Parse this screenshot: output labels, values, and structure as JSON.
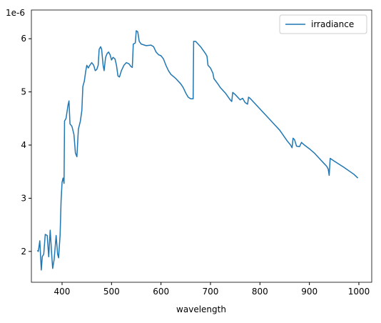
{
  "chart_data": {
    "type": "line",
    "xlabel": "wavelength",
    "y_offset_text": "1e-6",
    "x": [
      350,
      352,
      355,
      358,
      360,
      363,
      366,
      370,
      373,
      376,
      379,
      381,
      384,
      388,
      391,
      393,
      396,
      398,
      400,
      402,
      404,
      405,
      408,
      412,
      414,
      416,
      420,
      424,
      427,
      430,
      433,
      437,
      440,
      442,
      445,
      448,
      450,
      453,
      456,
      460,
      464,
      467,
      470,
      473,
      475,
      478,
      480,
      483,
      485,
      488,
      491,
      494,
      497,
      500,
      503,
      507,
      510,
      513,
      516,
      520,
      525,
      530,
      535,
      539,
      542,
      544,
      548,
      550,
      553,
      556,
      560,
      570,
      580,
      585,
      590,
      595,
      600,
      605,
      610,
      615,
      620,
      630,
      640,
      645,
      650,
      655,
      660,
      665,
      666,
      670,
      680,
      690,
      693,
      695,
      700,
      705,
      707,
      715,
      720,
      730,
      740,
      743,
      745,
      750,
      760,
      765,
      770,
      775,
      777,
      780,
      800,
      820,
      840,
      855,
      862,
      865,
      867,
      870,
      874,
      880,
      884,
      890,
      900,
      910,
      920,
      930,
      935,
      938,
      940,
      942,
      950,
      970,
      990,
      998
    ],
    "series": [
      {
        "name": "irradiance",
        "color": "#1f77b4",
        "values": [
          2.02,
          2.0,
          2.2,
          1.65,
          1.9,
          1.95,
          2.32,
          2.3,
          1.9,
          2.4,
          1.95,
          1.68,
          1.85,
          2.3,
          1.95,
          1.88,
          2.3,
          2.95,
          3.3,
          3.38,
          3.28,
          4.45,
          4.5,
          4.75,
          4.83,
          4.4,
          4.35,
          4.2,
          3.85,
          3.78,
          4.3,
          4.45,
          4.65,
          5.1,
          5.2,
          5.4,
          5.5,
          5.45,
          5.5,
          5.55,
          5.5,
          5.4,
          5.42,
          5.5,
          5.8,
          5.85,
          5.8,
          5.5,
          5.4,
          5.65,
          5.72,
          5.75,
          5.7,
          5.6,
          5.65,
          5.62,
          5.5,
          5.3,
          5.28,
          5.4,
          5.5,
          5.55,
          5.53,
          5.48,
          5.46,
          5.9,
          5.92,
          6.15,
          6.13,
          5.95,
          5.9,
          5.87,
          5.88,
          5.85,
          5.75,
          5.7,
          5.68,
          5.62,
          5.5,
          5.4,
          5.33,
          5.25,
          5.15,
          5.08,
          4.98,
          4.9,
          4.87,
          4.87,
          5.95,
          5.95,
          5.85,
          5.72,
          5.67,
          5.5,
          5.45,
          5.35,
          5.25,
          5.15,
          5.08,
          4.98,
          4.85,
          4.82,
          4.99,
          4.95,
          4.85,
          4.88,
          4.8,
          4.77,
          4.9,
          4.88,
          4.68,
          4.48,
          4.28,
          4.08,
          4.0,
          3.95,
          4.13,
          4.1,
          3.98,
          3.97,
          4.05,
          4.0,
          3.93,
          3.85,
          3.75,
          3.65,
          3.6,
          3.55,
          3.43,
          3.75,
          3.7,
          3.58,
          3.45,
          3.38
        ]
      }
    ],
    "xlim": [
      338,
      1026
    ],
    "ylim": [
      1.42,
      6.54
    ],
    "xticks": [
      400,
      500,
      600,
      700,
      800,
      900,
      1000
    ],
    "yticks": [
      2,
      3,
      4,
      5,
      6
    ],
    "legend": "upper right"
  }
}
